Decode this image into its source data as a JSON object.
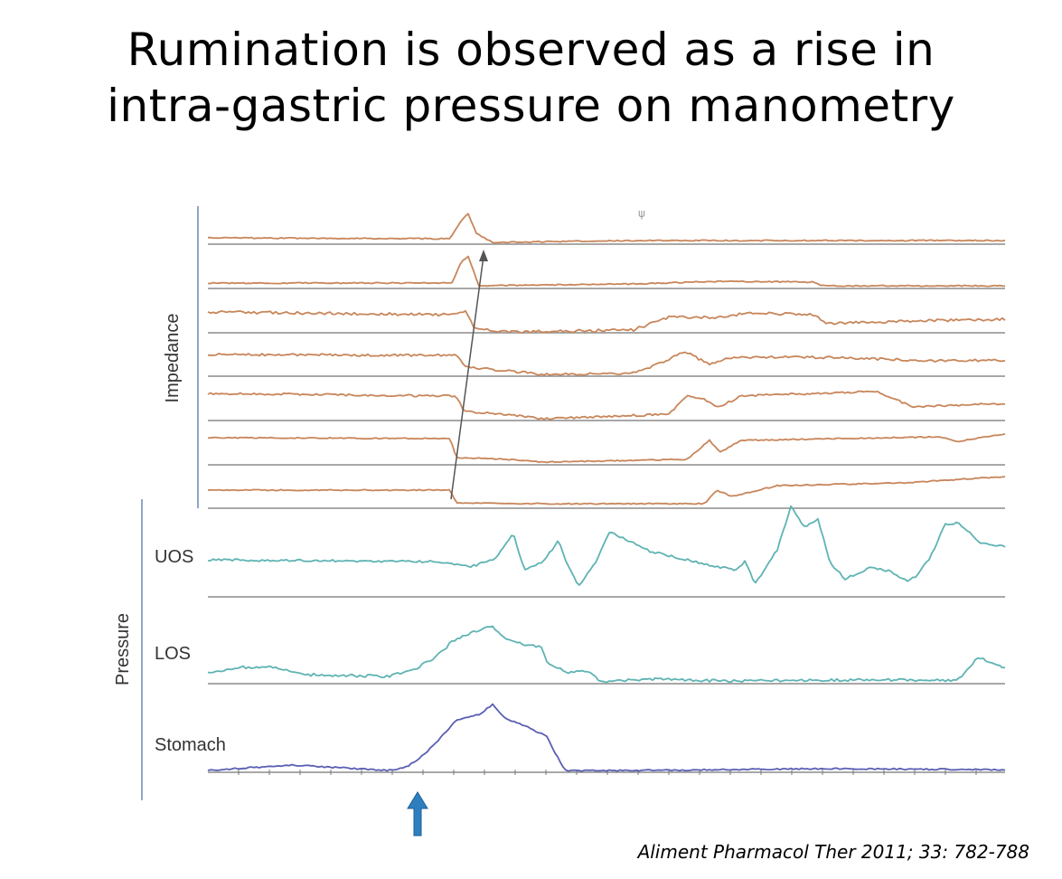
{
  "title": {
    "line1": "Rumination is observed as a rise in",
    "line2": "intra-gastric pressure on manometry"
  },
  "citation": "Aliment Pharmacol Ther 2011; 33: 782-788",
  "colors": {
    "impedance": "#c8865a",
    "pressure_uos": "#5fb3b3",
    "pressure_los": "#5fb3b3",
    "pressure_stomach": "#5a5fb3",
    "baseline": "#8c8c8c",
    "group_bracket": "#8fa6c8",
    "arrow": "#2e7fc0"
  },
  "chart_data": {
    "type": "line",
    "group_labels": {
      "impedance": "Impedance",
      "pressure": "Pressure"
    },
    "series": [
      {
        "group": "impedance",
        "channel": 1,
        "label": ""
      },
      {
        "group": "impedance",
        "channel": 2,
        "label": ""
      },
      {
        "group": "impedance",
        "channel": 3,
        "label": ""
      },
      {
        "group": "impedance",
        "channel": 4,
        "label": ""
      },
      {
        "group": "impedance",
        "channel": 5,
        "label": ""
      },
      {
        "group": "impedance",
        "channel": 6,
        "label": ""
      },
      {
        "group": "impedance",
        "channel": 7,
        "label": ""
      },
      {
        "group": "pressure",
        "channel": 1,
        "label": "UOS"
      },
      {
        "group": "pressure",
        "channel": 2,
        "label": "LOS"
      },
      {
        "group": "pressure",
        "channel": 3,
        "label": "Stomach"
      }
    ],
    "annotations": [
      "rise in intra-gastric pressure (arrow)",
      "proximal bolus movement (diagonal arrow across impedance channels)"
    ],
    "grid": false,
    "legend": "none"
  }
}
